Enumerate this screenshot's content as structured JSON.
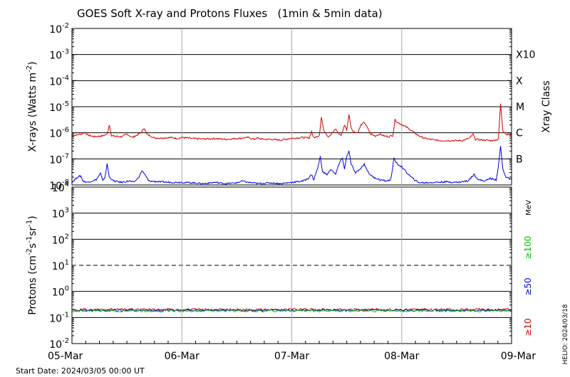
{
  "chart_data": {
    "type": "line",
    "title": "GOES Soft X-ray and Protons Fluxes   (1min & 5min data)",
    "start_date": "Start Date: 2024/03/05 00:00 UT",
    "credit": "HELIO: 2024/03/18",
    "x_ticks": [
      "05-Mar",
      "06-Mar",
      "07-Mar",
      "08-Mar",
      "09-Mar"
    ],
    "x_range_days": [
      0,
      4
    ],
    "xray_panel": {
      "ylabel_main": "X-rays (Watts m",
      "ylabel_exp": "-2",
      "ylabel_end": ")",
      "ylim_log10": [
        -8,
        -2
      ],
      "y_ticks": [
        {
          "base": "10",
          "exp": "-2",
          "log": -2
        },
        {
          "base": "10",
          "exp": "-3",
          "log": -3
        },
        {
          "base": "10",
          "exp": "-4",
          "log": -4
        },
        {
          "base": "10",
          "exp": "-5",
          "log": -5
        },
        {
          "base": "10",
          "exp": "-6",
          "log": -6
        },
        {
          "base": "10",
          "exp": "-7",
          "log": -7
        },
        {
          "base": "10",
          "exp": "-8",
          "log": -8
        }
      ],
      "class_title": "Xray Class",
      "classes": [
        {
          "label": "X10",
          "log": -3
        },
        {
          "label": "X",
          "log": -4
        },
        {
          "label": "M",
          "log": -5
        },
        {
          "label": "C",
          "log": -6
        },
        {
          "label": "B",
          "log": -7
        }
      ],
      "series": [
        {
          "name": "",
          "color": "#d40000",
          "points": [
            [
              0,
              -6.12
            ],
            [
              0.08,
              -6.05
            ],
            [
              0.12,
              -5.98
            ],
            [
              0.14,
              -6.08
            ],
            [
              0.2,
              -6.15
            ],
            [
              0.28,
              -6.12
            ],
            [
              0.32,
              -6.05
            ],
            [
              0.34,
              -5.7
            ],
            [
              0.36,
              -6.12
            ],
            [
              0.45,
              -6.15
            ],
            [
              0.5,
              -6.05
            ],
            [
              0.55,
              -6.18
            ],
            [
              0.62,
              -6.02
            ],
            [
              0.66,
              -5.82
            ],
            [
              0.68,
              -6.05
            ],
            [
              0.75,
              -6.2
            ],
            [
              0.82,
              -6.2
            ],
            [
              0.9,
              -6.18
            ],
            [
              0.96,
              -6.22
            ],
            [
              1.0,
              -6.18
            ],
            [
              1.1,
              -6.22
            ],
            [
              1.2,
              -6.24
            ],
            [
              1.3,
              -6.22
            ],
            [
              1.4,
              -6.25
            ],
            [
              1.5,
              -6.22
            ],
            [
              1.6,
              -6.18
            ],
            [
              1.66,
              -6.25
            ],
            [
              1.68,
              -6.2
            ],
            [
              1.74,
              -6.25
            ],
            [
              1.8,
              -6.25
            ],
            [
              1.9,
              -6.28
            ],
            [
              1.98,
              -6.22
            ],
            [
              2.1,
              -6.18
            ],
            [
              2.16,
              -6.2
            ],
            [
              2.18,
              -5.95
            ],
            [
              2.2,
              -6.2
            ],
            [
              2.25,
              -6.1
            ],
            [
              2.27,
              -5.4
            ],
            [
              2.29,
              -5.9
            ],
            [
              2.31,
              -6.0
            ],
            [
              2.33,
              -6.15
            ],
            [
              2.36,
              -6.05
            ],
            [
              2.4,
              -5.85
            ],
            [
              2.42,
              -6.0
            ],
            [
              2.45,
              -6.1
            ],
            [
              2.48,
              -5.7
            ],
            [
              2.5,
              -5.9
            ],
            [
              2.52,
              -5.3
            ],
            [
              2.54,
              -5.8
            ],
            [
              2.56,
              -5.95
            ],
            [
              2.6,
              -6.0
            ],
            [
              2.63,
              -5.7
            ],
            [
              2.66,
              -5.6
            ],
            [
              2.7,
              -5.9
            ],
            [
              2.72,
              -6.05
            ],
            [
              2.76,
              -6.12
            ],
            [
              2.8,
              -6.05
            ],
            [
              2.84,
              -6.12
            ],
            [
              2.88,
              -6.15
            ],
            [
              2.92,
              -6.1
            ],
            [
              2.94,
              -5.5
            ],
            [
              2.96,
              -5.6
            ],
            [
              3.0,
              -5.68
            ],
            [
              3.05,
              -5.8
            ],
            [
              3.1,
              -5.95
            ],
            [
              3.15,
              -6.1
            ],
            [
              3.2,
              -6.2
            ],
            [
              3.26,
              -6.25
            ],
            [
              3.35,
              -6.3
            ],
            [
              3.45,
              -6.3
            ],
            [
              3.55,
              -6.3
            ],
            [
              3.62,
              -6.2
            ],
            [
              3.65,
              -6.05
            ],
            [
              3.67,
              -6.25
            ],
            [
              3.75,
              -6.28
            ],
            [
              3.82,
              -6.3
            ],
            [
              3.88,
              -6.25
            ],
            [
              3.9,
              -4.9
            ],
            [
              3.92,
              -5.9
            ],
            [
              3.95,
              -6.05
            ],
            [
              4.0,
              -6.1
            ]
          ]
        },
        {
          "name": "",
          "color": "#0000e0",
          "points": [
            [
              0,
              -7.9
            ],
            [
              0.05,
              -7.7
            ],
            [
              0.08,
              -7.65
            ],
            [
              0.1,
              -7.85
            ],
            [
              0.14,
              -7.9
            ],
            [
              0.18,
              -7.85
            ],
            [
              0.22,
              -7.8
            ],
            [
              0.26,
              -7.55
            ],
            [
              0.28,
              -7.85
            ],
            [
              0.3,
              -7.7
            ],
            [
              0.32,
              -7.2
            ],
            [
              0.34,
              -7.7
            ],
            [
              0.38,
              -7.85
            ],
            [
              0.45,
              -7.9
            ],
            [
              0.52,
              -7.85
            ],
            [
              0.56,
              -7.9
            ],
            [
              0.6,
              -7.75
            ],
            [
              0.64,
              -7.45
            ],
            [
              0.67,
              -7.65
            ],
            [
              0.7,
              -7.85
            ],
            [
              0.8,
              -7.88
            ],
            [
              0.9,
              -7.9
            ],
            [
              1.0,
              -7.9
            ],
            [
              1.1,
              -7.92
            ],
            [
              1.2,
              -7.95
            ],
            [
              1.3,
              -7.9
            ],
            [
              1.4,
              -7.95
            ],
            [
              1.5,
              -7.92
            ],
            [
              1.55,
              -7.85
            ],
            [
              1.6,
              -7.9
            ],
            [
              1.7,
              -7.95
            ],
            [
              1.8,
              -7.92
            ],
            [
              1.9,
              -7.95
            ],
            [
              2.0,
              -7.9
            ],
            [
              2.1,
              -7.85
            ],
            [
              2.15,
              -7.75
            ],
            [
              2.18,
              -7.6
            ],
            [
              2.2,
              -7.8
            ],
            [
              2.24,
              -7.3
            ],
            [
              2.26,
              -6.9
            ],
            [
              2.28,
              -7.5
            ],
            [
              2.32,
              -7.6
            ],
            [
              2.36,
              -7.4
            ],
            [
              2.4,
              -7.6
            ],
            [
              2.42,
              -7.3
            ],
            [
              2.46,
              -6.95
            ],
            [
              2.48,
              -7.4
            ],
            [
              2.5,
              -6.9
            ],
            [
              2.52,
              -6.7
            ],
            [
              2.54,
              -7.2
            ],
            [
              2.58,
              -7.55
            ],
            [
              2.62,
              -7.4
            ],
            [
              2.66,
              -7.2
            ],
            [
              2.7,
              -7.55
            ],
            [
              2.74,
              -7.7
            ],
            [
              2.8,
              -7.8
            ],
            [
              2.86,
              -7.85
            ],
            [
              2.9,
              -7.8
            ],
            [
              2.93,
              -7.0
            ],
            [
              2.96,
              -7.2
            ],
            [
              3.0,
              -7.3
            ],
            [
              3.04,
              -7.5
            ],
            [
              3.1,
              -7.75
            ],
            [
              3.15,
              -7.9
            ],
            [
              3.2,
              -7.92
            ],
            [
              3.3,
              -7.9
            ],
            [
              3.4,
              -7.88
            ],
            [
              3.5,
              -7.9
            ],
            [
              3.6,
              -7.85
            ],
            [
              3.66,
              -7.6
            ],
            [
              3.7,
              -7.8
            ],
            [
              3.76,
              -7.85
            ],
            [
              3.8,
              -7.75
            ],
            [
              3.86,
              -7.8
            ],
            [
              3.88,
              -7.3
            ],
            [
              3.9,
              -6.5
            ],
            [
              3.92,
              -7.4
            ],
            [
              3.95,
              -7.7
            ],
            [
              4.0,
              -7.8
            ]
          ]
        }
      ]
    },
    "proton_panel": {
      "ylabel_main": "Protons (cm",
      "ylabel_sup1": "-2",
      "ylabel_mid1": "s",
      "ylabel_sup2": "-1",
      "ylabel_mid2": "sr",
      "ylabel_sup3": "-1",
      "ylabel_end": ")",
      "ylim_log10": [
        -2,
        4
      ],
      "y_ticks": [
        {
          "base": "10",
          "exp": "4",
          "log": 4
        },
        {
          "base": "10",
          "exp": "3",
          "log": 3
        },
        {
          "base": "10",
          "exp": "2",
          "log": 2
        },
        {
          "base": "10",
          "exp": "1",
          "log": 1
        },
        {
          "base": "10",
          "exp": "0",
          "log": 0
        },
        {
          "base": "10",
          "exp": "-1",
          "log": -1
        },
        {
          "base": "10",
          "exp": "-2",
          "log": -2
        }
      ],
      "threshold_log10": 1,
      "unit_label": "MeV",
      "energy_labels": [
        {
          "label": "≥100",
          "color": "#00c000"
        },
        {
          "label": "≥50",
          "color": "#0000e0"
        },
        {
          "label": "≥10",
          "color": "#d40000"
        }
      ],
      "series": [
        {
          "name": "≥10",
          "color": "#d40000",
          "level_log10": -0.7
        },
        {
          "name": "≥50",
          "color": "#0000e0",
          "level_log10": -0.72
        },
        {
          "name": "≥100",
          "color": "#00c000",
          "level_log10": -0.74
        }
      ]
    }
  }
}
